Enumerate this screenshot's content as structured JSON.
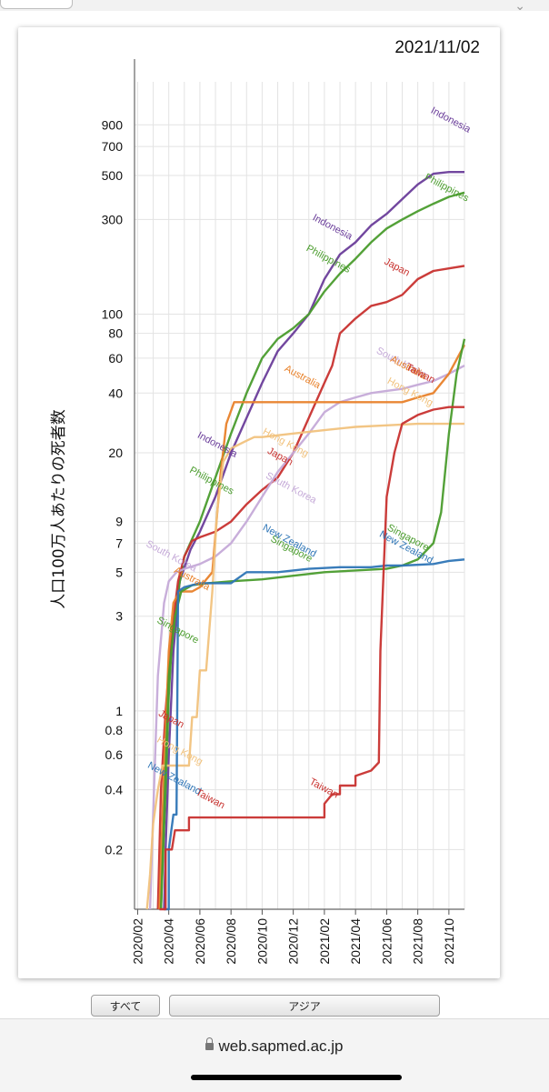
{
  "date": "2021/11/02",
  "controls": {
    "all_label": "すべて",
    "asia_label": "アジア"
  },
  "browser": {
    "url": "web.sapmed.ac.jp"
  },
  "chart_data": {
    "type": "line",
    "ylabel": "人口100万人あたりの死者数",
    "yscale": "log",
    "ylim": [
      0.1,
      1200
    ],
    "yticks": [
      0.2,
      0.4,
      0.6,
      0.8,
      1,
      3,
      5,
      7,
      9,
      20,
      40,
      60,
      80,
      100,
      300,
      500,
      700,
      900
    ],
    "ytick_labels": [
      "0.2",
      "0.4",
      "0.6",
      "0.8",
      "1",
      "3",
      "5",
      "7",
      "9",
      "20",
      "40",
      "60",
      "80",
      "100",
      "300",
      "500",
      "700",
      "900"
    ],
    "xlim": [
      -0.2,
      21.0
    ],
    "xticks": [
      0,
      2,
      4,
      6,
      8,
      10,
      12,
      14,
      16,
      18,
      20
    ],
    "xtick_labels": [
      "2020/02",
      "2020/04",
      "2020/06",
      "2020/08",
      "2020/10",
      "2020/12",
      "2021/02",
      "2021/04",
      "2021/06",
      "2021/08",
      "2021/10"
    ],
    "x_unit": "months since 2020/02/01",
    "series": [
      {
        "name": "Indonesia",
        "color": "#6a3d9a",
        "points": [
          [
            1.7,
            0.1
          ],
          [
            1.8,
            0.2
          ],
          [
            2,
            0.6
          ],
          [
            2.3,
            2
          ],
          [
            2.7,
            4.5
          ],
          [
            3.4,
            6.5
          ],
          [
            4,
            8
          ],
          [
            5,
            12
          ],
          [
            6,
            20
          ],
          [
            7,
            30
          ],
          [
            8,
            45
          ],
          [
            9,
            65
          ],
          [
            10,
            80
          ],
          [
            11,
            100
          ],
          [
            12,
            150
          ],
          [
            13,
            200
          ],
          [
            14,
            230
          ],
          [
            15,
            280
          ],
          [
            16,
            320
          ],
          [
            17,
            380
          ],
          [
            18,
            450
          ],
          [
            19,
            510
          ],
          [
            20,
            520
          ],
          [
            21,
            520
          ]
        ],
        "labels": [
          {
            "x": 18.8,
            "y": 1040,
            "text": "Indonesia"
          },
          {
            "x": 11.2,
            "y": 300,
            "text": "Indonesia"
          },
          {
            "x": 3.8,
            "y": 24,
            "text": "Indonesia"
          }
        ]
      },
      {
        "name": "Philippines",
        "color": "#4a9c2d",
        "points": [
          [
            1.5,
            0.1
          ],
          [
            1.8,
            0.4
          ],
          [
            2,
            1.2
          ],
          [
            2.2,
            2.2
          ],
          [
            2.6,
            4
          ],
          [
            3,
            6
          ],
          [
            4,
            9
          ],
          [
            5,
            15
          ],
          [
            6,
            25
          ],
          [
            7,
            40
          ],
          [
            8,
            60
          ],
          [
            9,
            75
          ],
          [
            10,
            85
          ],
          [
            11,
            100
          ],
          [
            12,
            130
          ],
          [
            13,
            160
          ],
          [
            14,
            190
          ],
          [
            15,
            230
          ],
          [
            16,
            270
          ],
          [
            17,
            300
          ],
          [
            18,
            330
          ],
          [
            19,
            360
          ],
          [
            20,
            390
          ],
          [
            21,
            410
          ]
        ],
        "labels": [
          {
            "x": 18.4,
            "y": 480,
            "text": "Philippines"
          },
          {
            "x": 10.8,
            "y": 210,
            "text": "Philippines"
          },
          {
            "x": 3.3,
            "y": 16,
            "text": "Philippines"
          }
        ]
      },
      {
        "name": "Japan",
        "color": "#c8322f",
        "points": [
          [
            1.3,
            0.1
          ],
          [
            1.5,
            0.4
          ],
          [
            1.8,
            1
          ],
          [
            2.2,
            2.5
          ],
          [
            2.6,
            4.5
          ],
          [
            3,
            6
          ],
          [
            3.5,
            7.2
          ],
          [
            4,
            7.5
          ],
          [
            5,
            8
          ],
          [
            6,
            9
          ],
          [
            7,
            11
          ],
          [
            8,
            13
          ],
          [
            9,
            15
          ],
          [
            10,
            20
          ],
          [
            11,
            30
          ],
          [
            12,
            45
          ],
          [
            12.5,
            55
          ],
          [
            13,
            80
          ],
          [
            14,
            95
          ],
          [
            15,
            110
          ],
          [
            16,
            115
          ],
          [
            17,
            125
          ],
          [
            18,
            150
          ],
          [
            19,
            165
          ],
          [
            20,
            170
          ],
          [
            21,
            175
          ]
        ],
        "labels": [
          {
            "x": 15.8,
            "y": 180,
            "text": "Japan"
          },
          {
            "x": 8.3,
            "y": 20,
            "text": "Japan"
          },
          {
            "x": 1.3,
            "y": 0.95,
            "text": "Japan"
          }
        ]
      },
      {
        "name": "South Korea",
        "color": "#c5aad8",
        "points": [
          [
            0.8,
            0.1
          ],
          [
            1,
            0.3
          ],
          [
            1.3,
            1.5
          ],
          [
            1.7,
            3.5
          ],
          [
            2,
            4.5
          ],
          [
            2.5,
            5
          ],
          [
            3,
            5.2
          ],
          [
            4,
            5.5
          ],
          [
            5,
            6
          ],
          [
            6,
            7
          ],
          [
            7,
            9
          ],
          [
            8,
            12
          ],
          [
            9,
            16
          ],
          [
            10,
            20
          ],
          [
            11,
            25
          ],
          [
            12,
            32
          ],
          [
            13,
            36
          ],
          [
            14,
            38
          ],
          [
            15,
            40
          ],
          [
            16,
            41
          ],
          [
            17,
            42
          ],
          [
            18,
            44
          ],
          [
            19,
            46
          ],
          [
            20,
            50
          ],
          [
            21,
            55
          ]
        ],
        "labels": [
          {
            "x": 15.3,
            "y": 64,
            "text": "South Korea"
          },
          {
            "x": 8.2,
            "y": 15,
            "text": "South Korea"
          },
          {
            "x": 0.5,
            "y": 6.8,
            "text": "South Korea"
          }
        ]
      },
      {
        "name": "Australia",
        "color": "#e8812a",
        "points": [
          [
            1.4,
            0.1
          ],
          [
            1.7,
            0.5
          ],
          [
            2,
            2
          ],
          [
            2.3,
            3.5
          ],
          [
            2.7,
            4
          ],
          [
            3.5,
            4
          ],
          [
            4,
            4.2
          ],
          [
            4.8,
            5
          ],
          [
            5.3,
            15
          ],
          [
            5.7,
            28
          ],
          [
            6.2,
            36
          ],
          [
            7,
            36
          ],
          [
            9,
            36
          ],
          [
            11,
            36
          ],
          [
            13,
            36
          ],
          [
            15,
            36
          ],
          [
            17,
            36
          ],
          [
            18,
            38
          ],
          [
            19,
            40
          ],
          [
            20,
            50
          ],
          [
            21,
            70
          ]
        ],
        "labels": [
          {
            "x": 16.2,
            "y": 58,
            "text": "Australia"
          },
          {
            "x": 9.4,
            "y": 52,
            "text": "Australia"
          },
          {
            "x": 2.3,
            "y": 5,
            "text": "Australia"
          }
        ]
      },
      {
        "name": "Hong Kong",
        "color": "#f1c27d",
        "points": [
          [
            0.6,
            0.1
          ],
          [
            0.8,
            0.15
          ],
          [
            1,
            0.27
          ],
          [
            1.3,
            0.4
          ],
          [
            1.6,
            0.53
          ],
          [
            2,
            0.53
          ],
          [
            2.5,
            0.53
          ],
          [
            3,
            0.53
          ],
          [
            3.3,
            0.53
          ],
          [
            3.5,
            0.93
          ],
          [
            3.8,
            0.93
          ],
          [
            4,
            1.6
          ],
          [
            4.4,
            1.6
          ],
          [
            4.8,
            4
          ],
          [
            5.1,
            10
          ],
          [
            5.5,
            18
          ],
          [
            6,
            21
          ],
          [
            6.5,
            22
          ],
          [
            7,
            23
          ],
          [
            7.5,
            24
          ],
          [
            8,
            24
          ],
          [
            10,
            25
          ],
          [
            12,
            26
          ],
          [
            14,
            27
          ],
          [
            16,
            27.5
          ],
          [
            18,
            28
          ],
          [
            20,
            28
          ],
          [
            21,
            28
          ]
        ],
        "labels": [
          {
            "x": 16,
            "y": 45,
            "text": "Hong Kong"
          },
          {
            "x": 8,
            "y": 25,
            "text": "Hong Kong"
          },
          {
            "x": 1.2,
            "y": 0.7,
            "text": "Hong Kong"
          }
        ]
      },
      {
        "name": "Singapore",
        "color": "#4a9c2d",
        "points": [
          [
            1.5,
            0.1
          ],
          [
            1.8,
            0.5
          ],
          [
            2,
            1.5
          ],
          [
            2.4,
            3
          ],
          [
            2.8,
            4
          ],
          [
            3.5,
            4.3
          ],
          [
            4.5,
            4.4
          ],
          [
            6,
            4.5
          ],
          [
            8,
            4.6
          ],
          [
            10,
            4.8
          ],
          [
            12,
            5
          ],
          [
            14,
            5.1
          ],
          [
            16,
            5.2
          ],
          [
            17,
            5.4
          ],
          [
            18,
            5.8
          ],
          [
            19,
            7
          ],
          [
            19.5,
            10
          ],
          [
            20,
            25
          ],
          [
            20.5,
            50
          ],
          [
            21,
            75
          ]
        ],
        "labels": [
          {
            "x": 16,
            "y": 8.2,
            "text": "Singapore"
          },
          {
            "x": 8.5,
            "y": 7.2,
            "text": "Singapore"
          },
          {
            "x": 1.2,
            "y": 2.8,
            "text": "Singapore"
          }
        ]
      },
      {
        "name": "New Zealand",
        "color": "#2e75b6",
        "points": [
          [
            1.7,
            0.1
          ],
          [
            2,
            0.1
          ],
          [
            2,
            0.2
          ],
          [
            2.3,
            0.3
          ],
          [
            2.5,
            0.3
          ],
          [
            2.6,
            4
          ],
          [
            3,
            4.2
          ],
          [
            4,
            4.4
          ],
          [
            6,
            4.4
          ],
          [
            7,
            5
          ],
          [
            9,
            5
          ],
          [
            11,
            5.2
          ],
          [
            13,
            5.3
          ],
          [
            15,
            5.3
          ],
          [
            16,
            5.4
          ],
          [
            17,
            5.4
          ],
          [
            19,
            5.5
          ],
          [
            20,
            5.7
          ],
          [
            21,
            5.8
          ]
        ],
        "labels": [
          {
            "x": 15.5,
            "y": 7.6,
            "text": "New Zealand"
          },
          {
            "x": 8,
            "y": 8.2,
            "text": "New Zealand"
          },
          {
            "x": 0.6,
            "y": 0.52,
            "text": "New Zealand"
          }
        ]
      },
      {
        "name": "Taiwan",
        "color": "#c8322f",
        "points": [
          [
            1.4,
            0.1
          ],
          [
            1.8,
            0.1
          ],
          [
            1.8,
            0.2
          ],
          [
            2.2,
            0.2
          ],
          [
            2.4,
            0.25
          ],
          [
            3.3,
            0.25
          ],
          [
            3.3,
            0.29
          ],
          [
            5,
            0.29
          ],
          [
            8,
            0.29
          ],
          [
            11,
            0.29
          ],
          [
            12,
            0.29
          ],
          [
            12,
            0.34
          ],
          [
            12.5,
            0.38
          ],
          [
            13,
            0.38
          ],
          [
            13,
            0.42
          ],
          [
            14,
            0.42
          ],
          [
            14,
            0.47
          ],
          [
            15,
            0.5
          ],
          [
            15.5,
            0.55
          ],
          [
            15.6,
            2
          ],
          [
            15.8,
            5
          ],
          [
            16,
            12
          ],
          [
            16.5,
            20
          ],
          [
            17,
            28
          ],
          [
            18,
            31
          ],
          [
            19,
            33
          ],
          [
            20,
            34
          ],
          [
            21,
            34
          ]
        ],
        "labels": [
          {
            "x": 17.2,
            "y": 53,
            "text": "Taiwan"
          },
          {
            "x": 11,
            "y": 0.43,
            "text": "Taiwan"
          },
          {
            "x": 3.7,
            "y": 0.38,
            "text": "Taiwan"
          }
        ]
      }
    ]
  }
}
